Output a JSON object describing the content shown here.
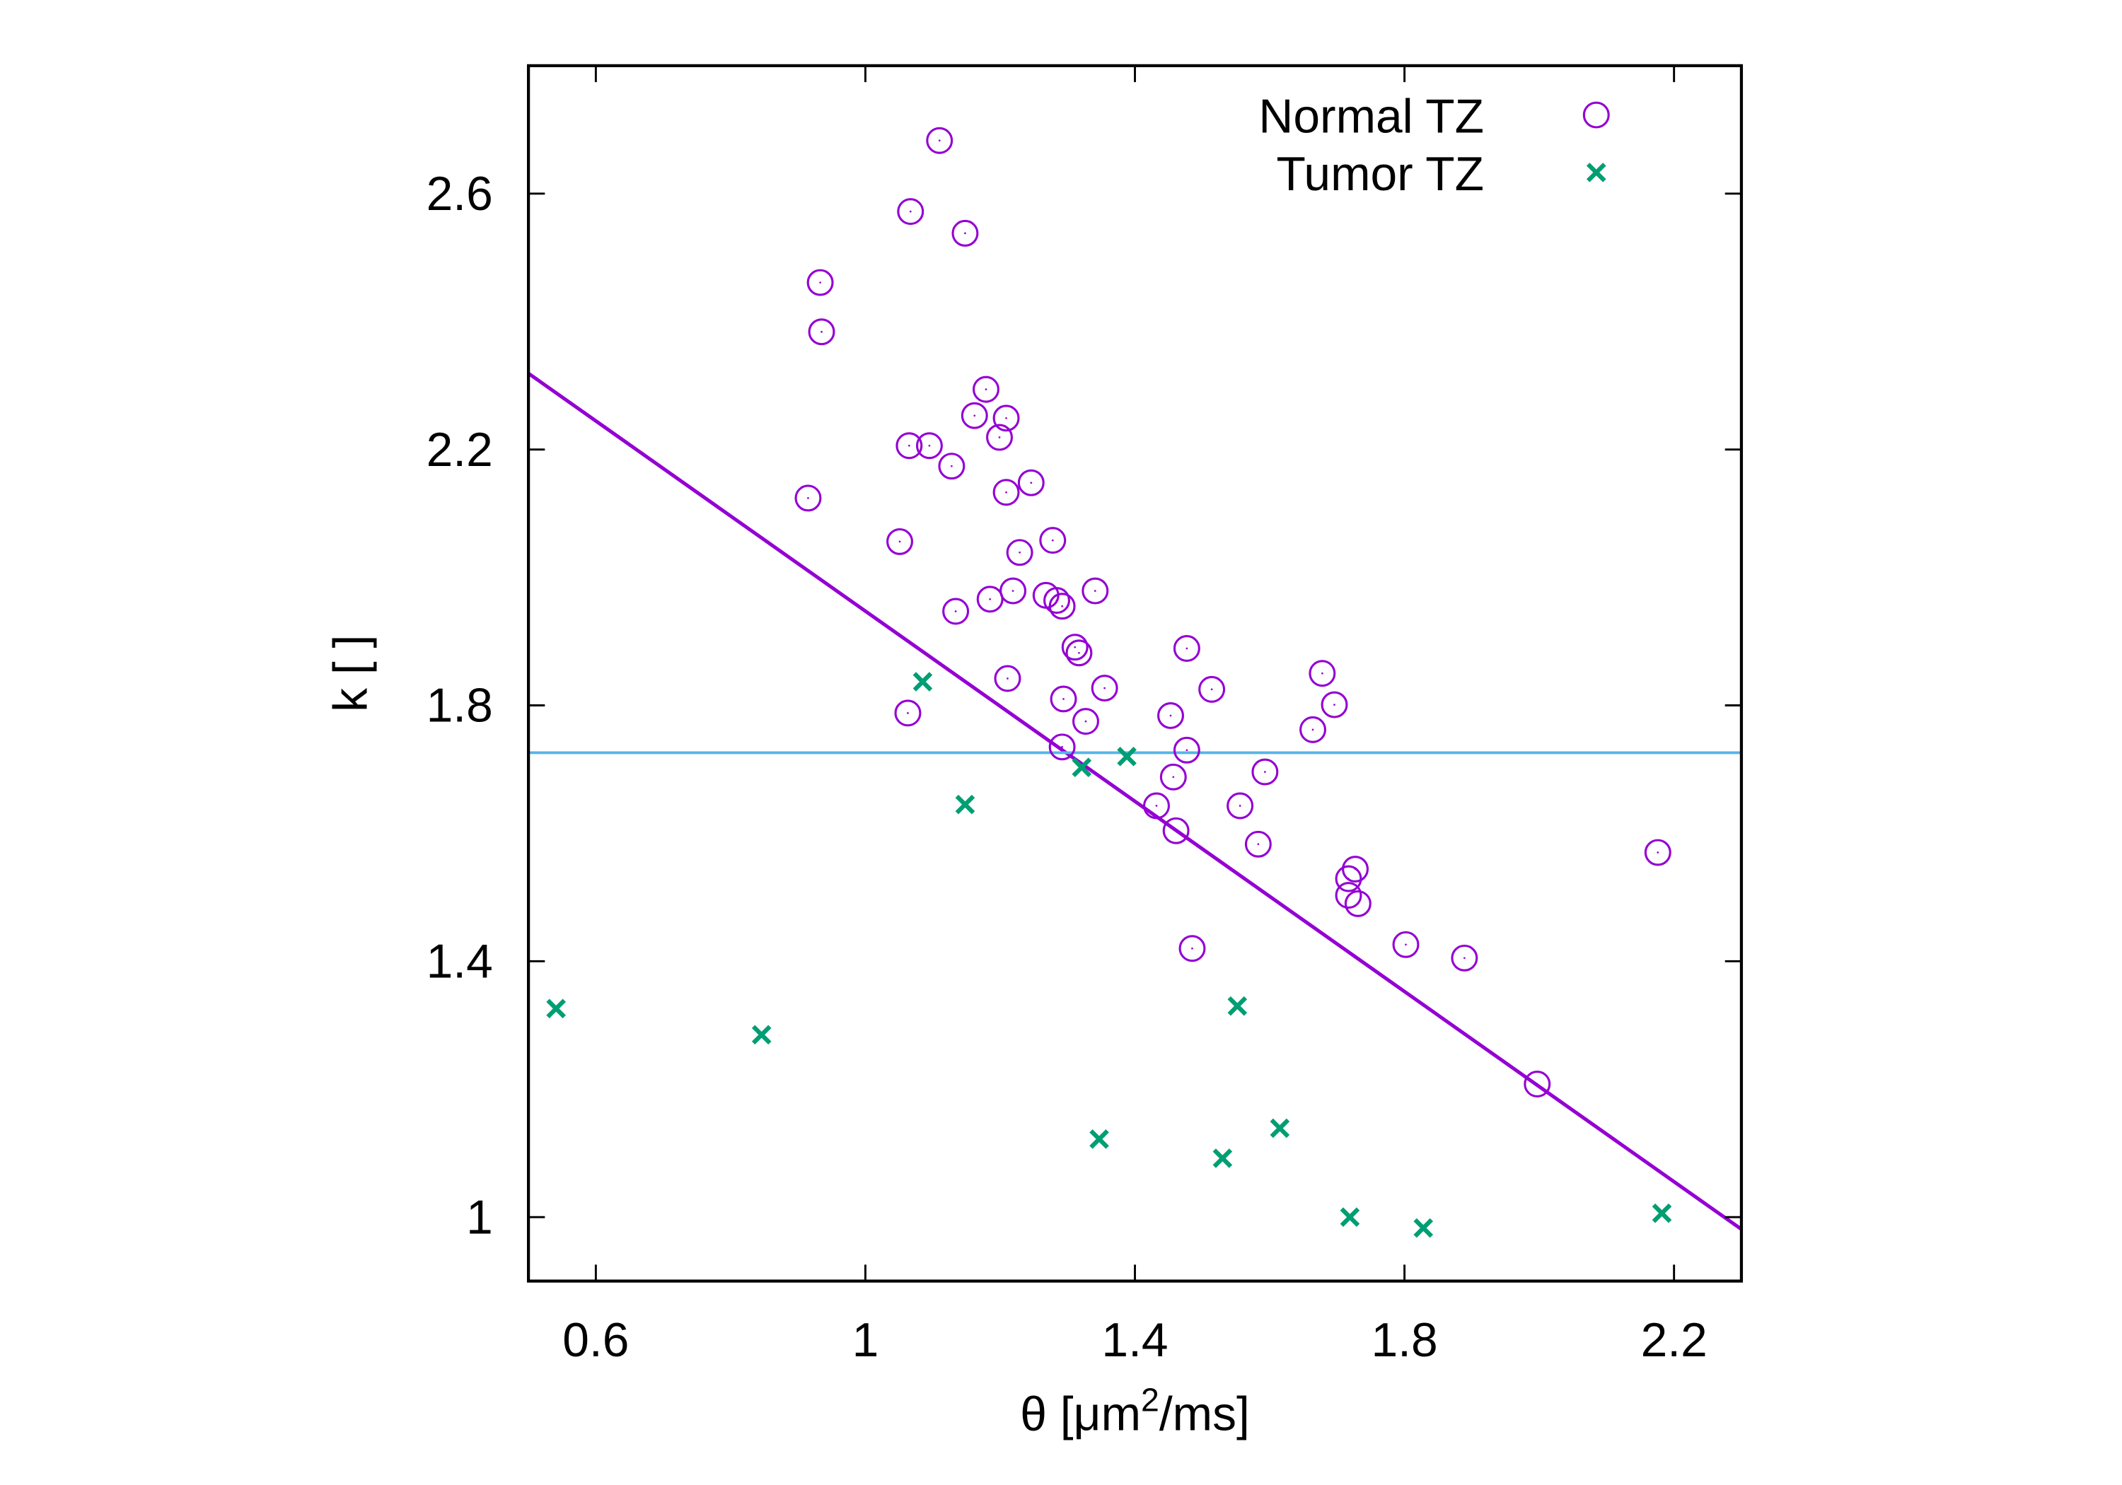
{
  "chart_data": {
    "type": "scatter",
    "title": "",
    "xlabel": "θ [μm²/ms]",
    "xlabel_parts": {
      "main": "θ [μm",
      "sup": "2",
      "tail": "/ms]"
    },
    "ylabel": "k [ ]",
    "xlim": [
      0.5,
      2.3
    ],
    "ylim": [
      0.9,
      2.8
    ],
    "xticks": [
      0.6,
      1.0,
      1.4,
      1.8,
      2.2
    ],
    "xtick_labels": [
      "0.6",
      "1",
      "1.4",
      "1.8",
      "2.2"
    ],
    "yticks": [
      1.0,
      1.4,
      1.8,
      2.2,
      2.6
    ],
    "ytick_labels": [
      "1",
      "1.4",
      "1.8",
      "2.2",
      "2.6"
    ],
    "grid": false,
    "legend_position": "top-right",
    "series": [
      {
        "name": "Normal TZ",
        "marker": "circle",
        "color": "#9400d3",
        "points": [
          [
            1.11,
            2.683
          ],
          [
            1.067,
            2.572
          ],
          [
            1.148,
            2.538
          ],
          [
            0.933,
            2.461
          ],
          [
            0.935,
            2.384
          ],
          [
            1.179,
            2.294
          ],
          [
            1.162,
            2.253
          ],
          [
            1.209,
            2.249
          ],
          [
            1.065,
            2.206
          ],
          [
            1.095,
            2.206
          ],
          [
            1.199,
            2.219
          ],
          [
            1.128,
            2.174
          ],
          [
            1.246,
            2.148
          ],
          [
            1.209,
            2.133
          ],
          [
            0.915,
            2.124
          ],
          [
            1.051,
            2.056
          ],
          [
            1.278,
            2.058
          ],
          [
            1.229,
            2.039
          ],
          [
            1.219,
            1.979
          ],
          [
            1.185,
            1.966
          ],
          [
            1.268,
            1.972
          ],
          [
            1.284,
            1.964
          ],
          [
            1.292,
            1.955
          ],
          [
            1.341,
            1.979
          ],
          [
            1.134,
            1.947
          ],
          [
            1.311,
            1.891
          ],
          [
            1.317,
            1.882
          ],
          [
            1.477,
            1.889
          ],
          [
            1.211,
            1.842
          ],
          [
            1.355,
            1.827
          ],
          [
            1.514,
            1.825
          ],
          [
            1.678,
            1.85
          ],
          [
            1.294,
            1.81
          ],
          [
            1.696,
            1.801
          ],
          [
            1.063,
            1.788
          ],
          [
            1.453,
            1.784
          ],
          [
            1.327,
            1.775
          ],
          [
            1.664,
            1.762
          ],
          [
            1.292,
            1.735
          ],
          [
            1.477,
            1.73
          ],
          [
            1.457,
            1.688
          ],
          [
            1.593,
            1.696
          ],
          [
            1.432,
            1.643
          ],
          [
            1.556,
            1.643
          ],
          [
            1.461,
            1.604
          ],
          [
            1.583,
            1.583
          ],
          [
            1.727,
            1.544
          ],
          [
            1.717,
            1.529
          ],
          [
            1.717,
            1.503
          ],
          [
            1.731,
            1.49
          ],
          [
            2.176,
            1.57
          ],
          [
            1.485,
            1.42
          ],
          [
            1.802,
            1.426
          ],
          [
            1.889,
            1.405
          ],
          [
            1.997,
            1.208
          ]
        ]
      },
      {
        "name": "Tumor TZ",
        "marker": "x",
        "color": "#009e73",
        "points": [
          [
            1.085,
            1.837
          ],
          [
            1.321,
            1.703
          ],
          [
            1.388,
            1.72
          ],
          [
            1.148,
            1.645
          ],
          [
            0.541,
            1.326
          ],
          [
            0.846,
            1.285
          ],
          [
            1.552,
            1.33
          ],
          [
            1.347,
            1.122
          ],
          [
            1.53,
            1.092
          ],
          [
            1.615,
            1.139
          ],
          [
            1.719,
            1.0
          ],
          [
            1.828,
            0.983
          ],
          [
            2.182,
            1.006
          ]
        ]
      }
    ],
    "lines": [
      {
        "name": "regression-line",
        "color": "#9400d3",
        "x": [
          0.5,
          2.3
        ],
        "y": [
          2.319,
          0.981
        ]
      },
      {
        "name": "threshold-line",
        "color": "#56b4e9",
        "x": [
          0.5,
          2.3
        ],
        "y": [
          1.726,
          1.726
        ]
      }
    ]
  }
}
